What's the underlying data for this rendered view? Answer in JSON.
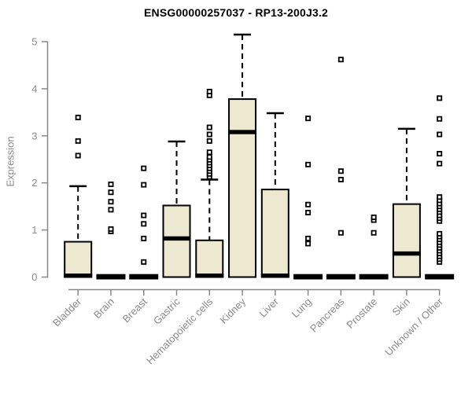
{
  "title": "ENSG00000257037 - RP13-200J3.2",
  "chart_data": {
    "type": "boxplot",
    "title": "ENSG00000257037 - RP13-200J3.2",
    "xlabel": "",
    "ylabel": "Expression",
    "ylim": [
      0,
      5
    ],
    "ytick_labels": [
      "0",
      "1",
      "2",
      "3",
      "4",
      "5"
    ],
    "grid": false,
    "legend": "none",
    "marker_style": "open-square",
    "colors": {
      "box_fill": "#ede8d0",
      "box_stroke": "#000000",
      "median": "#000000",
      "whisker": "#000000",
      "axis": "#888888",
      "tick_label": "#8a8a8a",
      "title": "#000000",
      "background": "#ffffff"
    },
    "categories": [
      "Bladder",
      "Brain",
      "Breast",
      "Gastric",
      "Hematopoietic cells",
      "Kidney",
      "Liver",
      "Lung",
      "Pancreas",
      "Prostate",
      "Skin",
      "Unknown / Other"
    ],
    "series": [
      {
        "label": "Bladder",
        "q1": 0,
        "median": 0.03,
        "q3": 0.75,
        "whisker_low": 0,
        "whisker_high": 1.93,
        "outliers": [
          2.58,
          2.89,
          3.39
        ]
      },
      {
        "label": "Brain",
        "q1": 0,
        "median": 0.03,
        "q3": 0.03,
        "whisker_low": 0,
        "whisker_high": 0.03,
        "outliers": [
          0.97,
          1.02,
          1.43,
          1.6,
          1.8,
          1.97
        ]
      },
      {
        "label": "Breast",
        "q1": 0,
        "median": 0.03,
        "q3": 0.03,
        "whisker_low": 0,
        "whisker_high": 0.03,
        "outliers": [
          0.32,
          0.82,
          1.13,
          1.31,
          1.96,
          2.31
        ]
      },
      {
        "label": "Gastric",
        "q1": 0,
        "median": 0.82,
        "q3": 1.52,
        "whisker_low": 0,
        "whisker_high": 2.88,
        "outliers": []
      },
      {
        "label": "Hematopoietic cells",
        "q1": 0,
        "median": 0.03,
        "q3": 0.78,
        "whisker_low": 0,
        "whisker_high": 2.07,
        "outliers": [
          2.13,
          2.19,
          2.25,
          2.31,
          2.37,
          2.43,
          2.49,
          2.55,
          2.65,
          2.89,
          3.03,
          3.18,
          3.86,
          3.94
        ]
      },
      {
        "label": "Kidney",
        "q1": 0,
        "median": 3.08,
        "q3": 3.78,
        "whisker_low": 0,
        "whisker_high": 5.15,
        "outliers": []
      },
      {
        "label": "Liver",
        "q1": 0,
        "median": 0.03,
        "q3": 1.86,
        "whisker_low": 0,
        "whisker_high": 3.48,
        "outliers": []
      },
      {
        "label": "Lung",
        "q1": 0,
        "median": 0.03,
        "q3": 0.03,
        "whisker_low": 0,
        "whisker_high": 0.03,
        "outliers": [
          0.71,
          0.82,
          1.37,
          1.54,
          2.39,
          3.37
        ]
      },
      {
        "label": "Pancreas",
        "q1": 0,
        "median": 0.03,
        "q3": 0.03,
        "whisker_low": 0,
        "whisker_high": 0.03,
        "outliers": [
          0.94,
          2.07,
          2.25,
          4.62
        ]
      },
      {
        "label": "Prostate",
        "q1": 0,
        "median": 0.03,
        "q3": 0.03,
        "whisker_low": 0,
        "whisker_high": 0.03,
        "outliers": [
          0.94,
          1.21,
          1.27
        ]
      },
      {
        "label": "Skin",
        "q1": 0,
        "median": 0.5,
        "q3": 1.55,
        "whisker_low": 0,
        "whisker_high": 3.15,
        "outliers": []
      },
      {
        "label": "Unknown / Other",
        "q1": 0,
        "median": 0.03,
        "q3": 0.03,
        "whisker_low": 0,
        "whisker_high": 0.03,
        "outliers": [
          0.32,
          0.38,
          0.44,
          0.5,
          0.56,
          0.62,
          0.68,
          0.74,
          0.8,
          0.86,
          0.92,
          1.19,
          1.25,
          1.31,
          1.38,
          1.44,
          1.5,
          1.56,
          1.63,
          1.7,
          2.41,
          2.62,
          3.03,
          3.36,
          3.8
        ]
      }
    ]
  }
}
